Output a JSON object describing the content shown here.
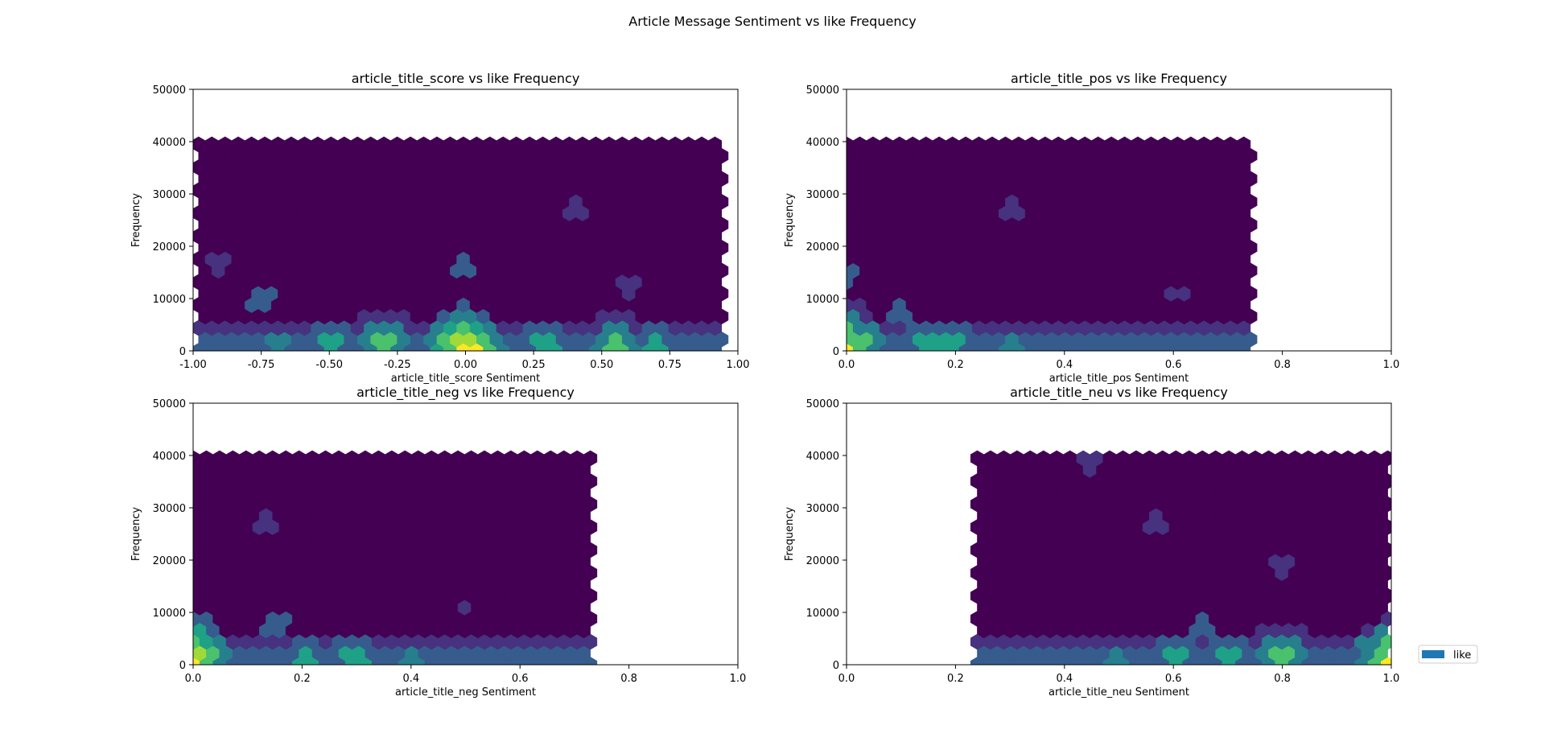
{
  "figure": {
    "suptitle": "Article Message Sentiment vs like Frequency"
  },
  "legend": {
    "label": "like",
    "color": "#1f77b4",
    "placement": "right"
  },
  "colormap": [
    "#440154",
    "#46327e",
    "#365c8d",
    "#277f8e",
    "#1fa187",
    "#4ac16d",
    "#a0da39",
    "#fde725"
  ],
  "chart_data": [
    {
      "type": "hexbin",
      "title": "article_title_score vs like Frequency",
      "xlabel": "article_title_score Sentiment",
      "ylabel": "Frequency",
      "xlim": [
        -1.0,
        1.0
      ],
      "ylim": [
        0,
        50000
      ],
      "xticks": [
        "-1.00",
        "-0.75",
        "-0.50",
        "-0.25",
        "0.00",
        "0.25",
        "0.50",
        "0.75",
        "1.00"
      ],
      "xtick_values": [
        -1.0,
        -0.75,
        -0.5,
        -0.25,
        0.0,
        0.25,
        0.5,
        0.75,
        1.0
      ],
      "yticks": [
        "0",
        "10000",
        "20000",
        "30000",
        "40000",
        "50000"
      ],
      "ytick_values": [
        0,
        10000,
        20000,
        30000,
        40000,
        50000
      ],
      "data_extent": {
        "x": [
          -0.98,
          0.94
        ],
        "y": [
          0,
          41000
        ]
      },
      "hotspots": [
        {
          "x": 0.0,
          "y": 0,
          "level": 7
        },
        {
          "x": -0.02,
          "y": 1500,
          "level": 6
        },
        {
          "x": 0.02,
          "y": 3500,
          "level": 4
        },
        {
          "x": -0.3,
          "y": 700,
          "level": 5
        },
        {
          "x": -0.5,
          "y": 700,
          "level": 4
        },
        {
          "x": 0.55,
          "y": 700,
          "level": 5
        },
        {
          "x": 0.3,
          "y": 1500,
          "level": 4
        },
        {
          "x": 0.7,
          "y": 700,
          "level": 4
        },
        {
          "x": -0.7,
          "y": 1500,
          "level": 3
        },
        {
          "x": 0.0,
          "y": 16000,
          "level": 2
        },
        {
          "x": -0.75,
          "y": 10000,
          "level": 2
        },
        {
          "x": 0.6,
          "y": 13000,
          "level": 1
        },
        {
          "x": 0.4,
          "y": 27000,
          "level": 1
        },
        {
          "x": -0.9,
          "y": 17000,
          "level": 1
        }
      ]
    },
    {
      "type": "hexbin",
      "title": "article_title_pos vs like Frequency",
      "xlabel": "article_title_pos Sentiment",
      "ylabel": "Frequency",
      "xlim": [
        0.0,
        1.0
      ],
      "ylim": [
        0,
        50000
      ],
      "xticks": [
        "0.0",
        "0.2",
        "0.4",
        "0.6",
        "0.8",
        "1.0"
      ],
      "xtick_values": [
        0.0,
        0.2,
        0.4,
        0.6,
        0.8,
        1.0
      ],
      "yticks": [
        "0",
        "10000",
        "20000",
        "30000",
        "40000",
        "50000"
      ],
      "ytick_values": [
        0,
        10000,
        20000,
        30000,
        40000,
        50000
      ],
      "data_extent": {
        "x": [
          0.0,
          0.75
        ],
        "y": [
          0,
          41000
        ]
      },
      "hotspots": [
        {
          "x": 0.0,
          "y": 0,
          "level": 7
        },
        {
          "x": 0.0,
          "y": 2000,
          "level": 5
        },
        {
          "x": 0.0,
          "y": 5000,
          "level": 3
        },
        {
          "x": 0.15,
          "y": 700,
          "level": 4
        },
        {
          "x": 0.2,
          "y": 1500,
          "level": 4
        },
        {
          "x": 0.3,
          "y": 700,
          "level": 3
        },
        {
          "x": 0.1,
          "y": 8000,
          "level": 2
        },
        {
          "x": 0.0,
          "y": 15000,
          "level": 2
        },
        {
          "x": 0.3,
          "y": 27000,
          "level": 1
        },
        {
          "x": 0.6,
          "y": 11000,
          "level": 1
        }
      ]
    },
    {
      "type": "hexbin",
      "title": "article_title_neg vs like Frequency",
      "xlabel": "article_title_neg Sentiment",
      "ylabel": "Frequency",
      "xlim": [
        0.0,
        1.0
      ],
      "ylim": [
        0,
        50000
      ],
      "xticks": [
        "0.0",
        "0.2",
        "0.4",
        "0.6",
        "0.8",
        "1.0"
      ],
      "xtick_values": [
        0.0,
        0.2,
        0.4,
        0.6,
        0.8,
        1.0
      ],
      "yticks": [
        "0",
        "10000",
        "20000",
        "30000",
        "40000",
        "50000"
      ],
      "ytick_values": [
        0,
        10000,
        20000,
        30000,
        40000,
        50000
      ],
      "data_extent": {
        "x": [
          0.0,
          0.73
        ],
        "y": [
          0,
          41000
        ]
      },
      "hotspots": [
        {
          "x": 0.0,
          "y": 0,
          "level": 7
        },
        {
          "x": 0.0,
          "y": 2000,
          "level": 6
        },
        {
          "x": 0.0,
          "y": 5000,
          "level": 3
        },
        {
          "x": 0.2,
          "y": 700,
          "level": 4
        },
        {
          "x": 0.3,
          "y": 1500,
          "level": 4
        },
        {
          "x": 0.4,
          "y": 700,
          "level": 3
        },
        {
          "x": 0.15,
          "y": 8000,
          "level": 2
        },
        {
          "x": 0.13,
          "y": 27000,
          "level": 1
        },
        {
          "x": 0.5,
          "y": 11000,
          "level": 1
        }
      ]
    },
    {
      "type": "hexbin",
      "title": "article_title_neu vs like Frequency",
      "xlabel": "article_title_neu Sentiment",
      "ylabel": "Frequency",
      "xlim": [
        0.0,
        1.0
      ],
      "ylim": [
        0,
        50000
      ],
      "xticks": [
        "0.0",
        "0.2",
        "0.4",
        "0.6",
        "0.8",
        "1.0"
      ],
      "xtick_values": [
        0.0,
        0.2,
        0.4,
        0.6,
        0.8,
        1.0
      ],
      "yticks": [
        "0",
        "10000",
        "20000",
        "30000",
        "40000",
        "50000"
      ],
      "ytick_values": [
        0,
        10000,
        20000,
        30000,
        40000,
        50000
      ],
      "data_extent": {
        "x": [
          0.24,
          1.0
        ],
        "y": [
          0,
          41000
        ]
      },
      "hotspots": [
        {
          "x": 1.0,
          "y": 0,
          "level": 7
        },
        {
          "x": 1.0,
          "y": 2000,
          "level": 5
        },
        {
          "x": 0.8,
          "y": 700,
          "level": 5
        },
        {
          "x": 0.7,
          "y": 700,
          "level": 4
        },
        {
          "x": 0.6,
          "y": 1500,
          "level": 4
        },
        {
          "x": 0.5,
          "y": 700,
          "level": 3
        },
        {
          "x": 0.65,
          "y": 8000,
          "level": 2
        },
        {
          "x": 0.8,
          "y": 19000,
          "level": 1
        },
        {
          "x": 0.57,
          "y": 27000,
          "level": 1
        },
        {
          "x": 0.45,
          "y": 39000,
          "level": 1
        }
      ]
    }
  ]
}
